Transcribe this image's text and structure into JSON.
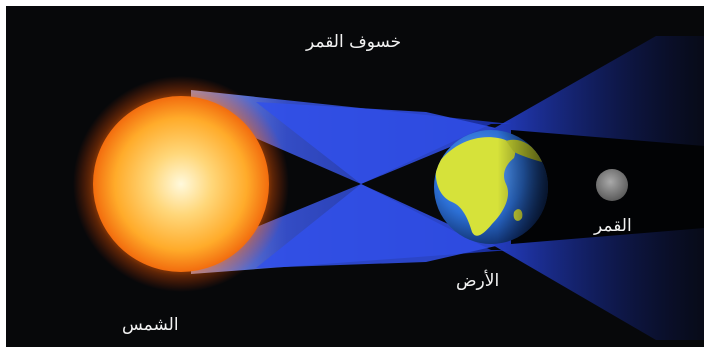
{
  "diagram": {
    "title": "خسوف القمر",
    "labels": {
      "sun": "الشمس",
      "earth": "الأرض",
      "moon": "القمر"
    }
  },
  "colors": {
    "background": "#07080a",
    "frame": "#ffffff",
    "sun_core": "#fff6c8",
    "sun_mid": "#ffb32c",
    "sun_edge": "#f06a0c",
    "shadow_cone": "#2a48e8",
    "ocean": "#2f74d8",
    "land": "#d6e23a",
    "moon": "#8d8d8d",
    "label_text": "#f2f2f2"
  }
}
